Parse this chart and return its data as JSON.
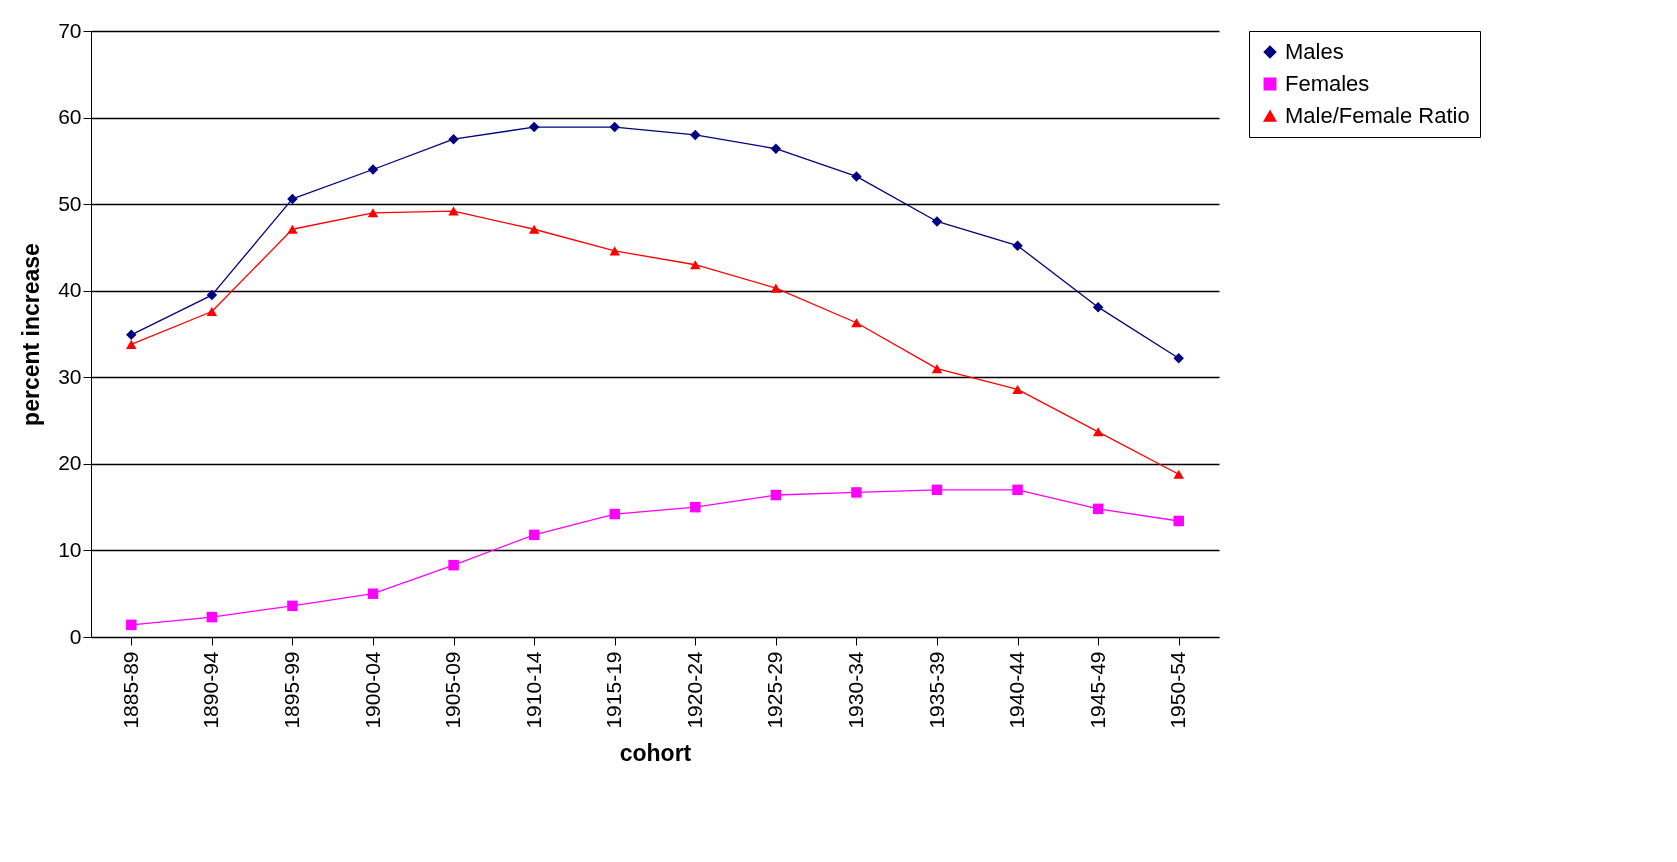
{
  "chart_data": {
    "type": "line",
    "xlabel": "cohort",
    "ylabel": "percent increase",
    "categories": [
      "1885-89",
      "1890-94",
      "1895-99",
      "1900-04",
      "1905-09",
      "1910-14",
      "1915-19",
      "1920-24",
      "1925-29",
      "1930-34",
      "1935-39",
      "1940-44",
      "1945-49",
      "1950-54"
    ],
    "series": [
      {
        "name": "Males",
        "color": "#000080",
        "marker": "diamond",
        "values": [
          34.9,
          39.5,
          50.6,
          54.0,
          57.5,
          58.9,
          58.9,
          58.0,
          56.4,
          53.2,
          48.0,
          45.2,
          38.1,
          32.2
        ]
      },
      {
        "name": "Females",
        "color": "#ff00ff",
        "marker": "square",
        "values": [
          1.4,
          2.3,
          3.6,
          5.0,
          8.3,
          11.8,
          14.2,
          15.0,
          16.4,
          16.7,
          17.0,
          17.0,
          14.8,
          13.4
        ]
      },
      {
        "name": "Male/Female Ratio",
        "color": "#ff0000",
        "marker": "triangle",
        "values": [
          33.8,
          37.6,
          47.1,
          49.0,
          49.2,
          47.1,
          44.6,
          43.0,
          40.3,
          36.3,
          31.0,
          28.6,
          23.7,
          18.8
        ]
      }
    ],
    "ylim": [
      0,
      70
    ],
    "yticks": [
      0,
      10,
      20,
      30,
      40,
      50,
      60,
      70
    ],
    "grid": "y",
    "legend": "right",
    "line_style": "solid"
  }
}
